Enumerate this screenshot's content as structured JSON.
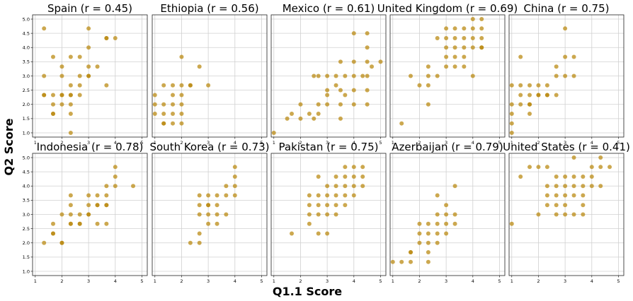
{
  "figure": {
    "xlabel": "Q1.1 Score",
    "ylabel": "Q2 Score",
    "point_color": "#B8860B"
  },
  "chart_data": [
    {
      "type": "scatter",
      "title": "Spain (r = 0.45)",
      "xlim": [
        0.9,
        5.2
      ],
      "ylim": [
        0.85,
        5.15
      ],
      "xticks": [
        "1",
        "2",
        "3",
        "4",
        "5"
      ],
      "yticks": [
        "1.0",
        "1.5",
        "2.0",
        "2.5",
        "3.0",
        "3.5",
        "4.0",
        "4.5",
        "5.0"
      ],
      "grid": true,
      "x": [
        1.33,
        1.33,
        1.33,
        1.33,
        1.67,
        1.67,
        1.67,
        1.67,
        1.67,
        2,
        2,
        2,
        2,
        2,
        2.33,
        2.33,
        2.33,
        2.33,
        2.33,
        2.33,
        2.33,
        2.67,
        2.67,
        2.67,
        2.67,
        3,
        3,
        3,
        3,
        3,
        3.33,
        3.67,
        3.67,
        3.67,
        4
      ],
      "y": [
        4.67,
        3,
        2.33,
        2.33,
        3.67,
        2.33,
        2,
        1.67,
        1.67,
        3.33,
        3,
        2.33,
        2.33,
        2,
        3.67,
        2.67,
        2.33,
        2.33,
        2,
        1.67,
        1,
        3.67,
        3,
        2.67,
        2.33,
        4.67,
        4,
        3.33,
        3,
        3,
        3.33,
        4.33,
        2.67,
        4.33,
        4.33
      ]
    },
    {
      "type": "scatter",
      "title": "Ethiopia (r = 0.56)",
      "xlim": [
        0.9,
        5.2
      ],
      "ylim": [
        0.85,
        5.15
      ],
      "grid": true,
      "x": [
        1,
        1,
        1,
        1.33,
        1.33,
        1.33,
        1.33,
        1.33,
        1.67,
        1.67,
        1.67,
        1.67,
        1.67,
        2,
        2,
        2,
        2,
        2,
        2,
        2.33,
        2.33,
        2.67,
        3
      ],
      "y": [
        2.33,
        2,
        1.67,
        2.67,
        2,
        1.67,
        1.33,
        1.33,
        2.67,
        2.33,
        2,
        1.67,
        1.33,
        3.67,
        2.67,
        2.33,
        2,
        1.67,
        1.33,
        2.67,
        2.67,
        3.33,
        2.67
      ]
    },
    {
      "type": "scatter",
      "title": "Mexico (r = 0.61)",
      "xlim": [
        0.9,
        5.2
      ],
      "ylim": [
        0.85,
        5.15
      ],
      "grid": true,
      "x": [
        1,
        1.5,
        1.67,
        2,
        2,
        2.33,
        2.5,
        2.5,
        2.67,
        2.67,
        2.67,
        3,
        3,
        3,
        3,
        3.33,
        3.33,
        3.5,
        3.5,
        3.5,
        3.5,
        3.67,
        3.67,
        4,
        4,
        4,
        4,
        4,
        4.33,
        4.5,
        4.5,
        4.5,
        4.5,
        4.5,
        4.5,
        4.67,
        5
      ],
      "y": [
        1,
        1.5,
        1.67,
        2,
        1.5,
        1.67,
        3,
        1.5,
        3,
        2,
        1.67,
        3,
        2.5,
        2,
        2.33,
        3,
        2.67,
        3.5,
        2.5,
        2,
        1.5,
        3,
        2.33,
        4.5,
        3.5,
        3,
        2.5,
        2,
        3,
        4.5,
        4,
        3.5,
        3,
        2.5,
        2,
        3.33,
        3.5
      ]
    },
    {
      "type": "scatter",
      "title": "United Kingdom (r = 0.69)",
      "xlim": [
        0.9,
        5.2
      ],
      "ylim": [
        0.85,
        5.15
      ],
      "grid": true,
      "x": [
        1.33,
        1.67,
        2,
        2.33,
        2.33,
        2.33,
        2.33,
        2.67,
        2.67,
        3,
        3,
        3,
        3,
        3,
        3.33,
        3.33,
        3.33,
        3.33,
        3.33,
        3.67,
        3.67,
        3.67,
        3.67,
        3.67,
        4,
        4,
        4,
        4,
        4,
        4.33,
        4.33,
        4.33,
        4.33,
        4.33
      ],
      "y": [
        1.33,
        3,
        2.67,
        3.33,
        3,
        2.67,
        2,
        4.33,
        3,
        4.67,
        4.33,
        4,
        3.67,
        3.33,
        4.67,
        4.33,
        4,
        3.67,
        3.33,
        4.67,
        4.33,
        4,
        3.67,
        3.33,
        5,
        4.33,
        4,
        3,
        4.67,
        5,
        4.67,
        4.33,
        4,
        4
      ]
    },
    {
      "type": "scatter",
      "title": "China (r = 0.75)",
      "xlim": [
        0.9,
        5.2
      ],
      "ylim": [
        0.85,
        5.15
      ],
      "grid": true,
      "x": [
        1,
        1,
        1,
        1,
        1,
        1.33,
        1.33,
        1.33,
        1.33,
        1.67,
        1.67,
        1.67,
        1.67,
        1.67,
        2,
        2,
        2,
        2.33,
        2.33,
        2.33,
        2.67,
        2.67,
        2.67,
        3,
        3,
        3,
        3.33,
        3.33
      ],
      "y": [
        2.67,
        2,
        1.67,
        1.33,
        1,
        3.67,
        2.67,
        2.33,
        2,
        2.67,
        2.33,
        2,
        1.67,
        2,
        2.67,
        2.33,
        2.33,
        2.67,
        2.33,
        2.33,
        3.33,
        3,
        2.33,
        4.67,
        3.67,
        3,
        3.67,
        3
      ]
    },
    {
      "type": "scatter",
      "title": "Indonesia (r = 0.78)",
      "xlim": [
        0.9,
        5.2
      ],
      "ylim": [
        0.85,
        5.15
      ],
      "grid": true,
      "x": [
        1.33,
        1.67,
        1.67,
        1.67,
        2,
        2,
        2,
        2.33,
        2.33,
        2.33,
        2.33,
        2.33,
        2.67,
        2.67,
        2.67,
        3,
        3,
        3,
        3,
        3.33,
        3.33,
        3.33,
        3.33,
        3.67,
        3.67,
        3.67,
        3.67,
        3.67,
        4,
        4,
        4,
        4.67
      ],
      "y": [
        2,
        2.67,
        2.33,
        2.33,
        3,
        2,
        2,
        3.67,
        3.33,
        3,
        2.67,
        2.67,
        3,
        2.67,
        2.67,
        3.67,
        3.33,
        3,
        3,
        3.67,
        3.33,
        3.33,
        2.67,
        4,
        3.67,
        3.33,
        3.33,
        2.67,
        4.67,
        4.33,
        4,
        4
      ]
    },
    {
      "type": "scatter",
      "title": "South Korea (r = 0.73)",
      "xlim": [
        0.9,
        5.2
      ],
      "ylim": [
        0.85,
        5.15
      ],
      "grid": true,
      "x": [
        2.33,
        2.67,
        2.67,
        2.67,
        2.67,
        2.67,
        3,
        3,
        3,
        3,
        3,
        3.33,
        3.33,
        3.33,
        3.33,
        3.67,
        3.67,
        3.67,
        4,
        4,
        4,
        4
      ],
      "y": [
        2,
        3.67,
        3.33,
        3,
        2.33,
        2,
        3.67,
        3.33,
        3,
        2.67,
        3.33,
        3.67,
        3.33,
        3,
        2.67,
        4,
        3.67,
        3,
        4.67,
        4.33,
        4,
        3.67
      ]
    },
    {
      "type": "scatter",
      "title": "Pakistan (r = 0.75)",
      "xlim": [
        0.9,
        5.2
      ],
      "ylim": [
        0.85,
        5.15
      ],
      "grid": true,
      "x": [
        1.67,
        2.33,
        2.33,
        2.33,
        2.33,
        2.67,
        2.67,
        2.67,
        2.67,
        2.67,
        3,
        3,
        3,
        3,
        3,
        3.33,
        3.33,
        3.33,
        3.33,
        3.33,
        3.67,
        3.67,
        3.67,
        3.67,
        3.67,
        4,
        4,
        4,
        4,
        4.33,
        4.33,
        4.33
      ],
      "y": [
        2.33,
        3.67,
        3.33,
        3,
        2.67,
        4.33,
        3.67,
        3.33,
        3,
        2.33,
        4,
        3.67,
        3.33,
        3,
        2.33,
        4.33,
        4,
        3.67,
        3.33,
        3,
        4.67,
        4.33,
        4,
        3.67,
        3.33,
        4.67,
        4.33,
        4,
        3.67,
        4.33,
        4,
        4.67
      ]
    },
    {
      "type": "scatter",
      "title": "Azerbaijan (r = 0.79)",
      "xlim": [
        0.9,
        5.2
      ],
      "ylim": [
        0.85,
        5.15
      ],
      "grid": true,
      "x": [
        1,
        1.33,
        1.67,
        1.67,
        1.67,
        2,
        2,
        2,
        2.33,
        2.33,
        2.33,
        2.33,
        2.33,
        2.67,
        2.67,
        2.67,
        2.67,
        2.67,
        3,
        3,
        3,
        3,
        3.33,
        3.33,
        3.33
      ],
      "y": [
        1.33,
        1.33,
        1.67,
        1.33,
        1.67,
        2.67,
        2.33,
        2,
        2.67,
        2.33,
        2,
        1.67,
        1.33,
        3.67,
        3,
        2.67,
        2.33,
        2,
        3.33,
        3,
        2.67,
        2.33,
        4,
        3,
        2.67
      ]
    },
    {
      "type": "scatter",
      "title": "United States (r = 0.41)",
      "xlim": [
        0.9,
        5.2
      ],
      "ylim": [
        0.85,
        5.15
      ],
      "grid": true,
      "x": [
        1,
        1.33,
        1.67,
        2,
        2,
        2.33,
        2.33,
        2.33,
        2.33,
        2.67,
        2.67,
        2.67,
        2.67,
        2.67,
        3,
        3,
        3,
        3,
        3,
        3.33,
        3.33,
        3.33,
        3.33,
        3.33,
        3.67,
        3.67,
        3.67,
        3.67,
        3.67,
        4,
        4,
        4,
        4.33,
        4.33,
        4.33,
        4.67
      ],
      "y": [
        2.67,
        4.33,
        4.67,
        4.67,
        3,
        4.67,
        4,
        3.67,
        3.33,
        4.33,
        4,
        3.67,
        3.33,
        3,
        4.33,
        4,
        3.67,
        3.33,
        3,
        5,
        4.33,
        4,
        3.67,
        3,
        4.33,
        4,
        3.67,
        3.33,
        3,
        4.67,
        4.33,
        4,
        5,
        4.67,
        4,
        4.67
      ]
    }
  ]
}
